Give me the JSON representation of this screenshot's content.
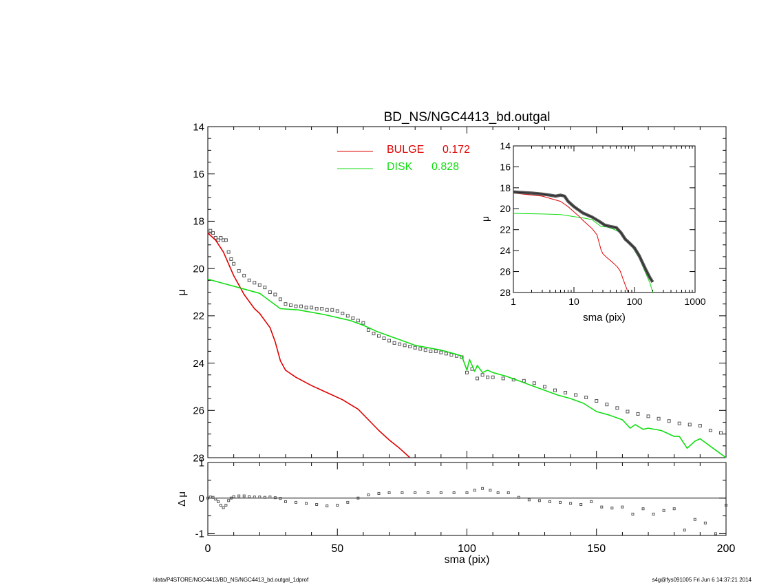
{
  "footer": {
    "left": "/data/P4STORE/NGC4413/BD_NS/NGC4413_bd.outgal_1dprof",
    "right": "s4g@fys091005  Fri Jun  6 14:37:21 2014"
  },
  "colors": {
    "data": "#555555",
    "bulge": "#e00000",
    "disk": "#11dd11",
    "axis": "#000000"
  },
  "chart_data": [
    {
      "id": "main",
      "type": "line",
      "title": "BD_NS/NGC4413_bd.outgal",
      "xlabel": "",
      "ylabel": "μ",
      "xlim": [
        0,
        200
      ],
      "ylim": [
        14,
        28
      ],
      "y_inverted": true,
      "xticks": [
        0,
        50,
        100,
        150,
        200
      ],
      "yticks": [
        14,
        16,
        18,
        20,
        22,
        24,
        26,
        28
      ],
      "legend": {
        "position": "top-center",
        "entries": [
          {
            "label": "BULGE",
            "value": "0.172",
            "color": "#e00000"
          },
          {
            "label": "DISK",
            "value": "0.828",
            "color": "#11dd11"
          }
        ]
      },
      "series": [
        {
          "name": "data",
          "style": "markers",
          "x": [
            1,
            2,
            3,
            4,
            5,
            6,
            7,
            8,
            9,
            10,
            12,
            14,
            16,
            18,
            20,
            22,
            24,
            26,
            28,
            30,
            32,
            34,
            36,
            38,
            40,
            42,
            44,
            46,
            48,
            50,
            52,
            54,
            56,
            58,
            60,
            62,
            64,
            66,
            68,
            70,
            72,
            74,
            76,
            78,
            80,
            82,
            84,
            86,
            88,
            90,
            92,
            94,
            96,
            98,
            100,
            102,
            104,
            106,
            108,
            110,
            114,
            118,
            122,
            126,
            130,
            134,
            138,
            142,
            146,
            150,
            154,
            158,
            162,
            166,
            170,
            174,
            178,
            182,
            186,
            190,
            194,
            198
          ],
          "y": [
            18.4,
            18.5,
            18.7,
            18.8,
            18.7,
            18.8,
            18.8,
            19.3,
            19.6,
            19.8,
            20.1,
            20.3,
            20.5,
            20.6,
            20.7,
            20.8,
            21.0,
            21.1,
            21.3,
            21.5,
            21.55,
            21.6,
            21.6,
            21.65,
            21.65,
            21.7,
            21.7,
            21.75,
            21.75,
            21.8,
            21.9,
            22.0,
            22.1,
            22.2,
            22.3,
            22.6,
            22.75,
            22.85,
            22.95,
            23.05,
            23.15,
            23.2,
            23.25,
            23.3,
            23.35,
            23.4,
            23.45,
            23.5,
            23.5,
            23.55,
            23.6,
            23.65,
            23.7,
            23.75,
            24.4,
            24.25,
            24.65,
            24.5,
            24.6,
            24.6,
            24.65,
            24.7,
            24.75,
            24.85,
            25.0,
            25.15,
            25.25,
            25.35,
            25.45,
            25.6,
            25.75,
            25.9,
            26.05,
            26.15,
            26.25,
            26.35,
            26.45,
            26.55,
            26.6,
            26.65,
            26.85,
            26.95
          ]
        },
        {
          "name": "BULGE",
          "style": "line",
          "x": [
            0,
            3,
            6,
            8,
            10,
            12,
            14,
            16,
            18,
            20,
            22,
            24,
            26,
            28,
            30,
            34,
            40,
            46,
            52,
            58,
            62,
            66,
            70,
            74,
            78
          ],
          "y": [
            18.5,
            18.8,
            19.3,
            19.8,
            20.3,
            20.7,
            21.1,
            21.4,
            21.7,
            21.9,
            22.2,
            22.5,
            23.1,
            23.9,
            24.3,
            24.6,
            24.95,
            25.25,
            25.55,
            25.95,
            26.4,
            26.85,
            27.25,
            27.6,
            28.0
          ]
        },
        {
          "name": "DISK",
          "style": "line",
          "x": [
            0,
            10,
            20,
            28,
            35,
            45,
            55,
            60,
            65,
            70,
            75,
            80,
            85,
            90,
            95,
            98,
            100,
            101,
            103,
            104,
            106,
            108,
            110,
            115,
            120,
            125,
            130,
            135,
            140,
            145,
            150,
            155,
            160,
            163,
            165,
            168,
            170,
            175,
            180,
            182,
            185,
            188,
            190,
            195,
            200
          ],
          "y": [
            20.45,
            20.75,
            21.05,
            21.7,
            21.75,
            21.95,
            22.2,
            22.4,
            22.65,
            22.85,
            23.05,
            23.25,
            23.35,
            23.45,
            23.6,
            23.7,
            24.3,
            23.85,
            24.35,
            24.1,
            24.4,
            24.3,
            24.4,
            24.55,
            24.75,
            24.95,
            25.15,
            25.35,
            25.5,
            25.7,
            26.05,
            26.2,
            26.4,
            26.75,
            26.6,
            26.8,
            26.75,
            26.85,
            27.1,
            27.1,
            27.6,
            27.3,
            27.2,
            27.6,
            28.0
          ]
        }
      ]
    },
    {
      "id": "residual",
      "type": "scatter",
      "xlabel": "sma (pix)",
      "ylabel": "Δ μ",
      "xlim": [
        0,
        200
      ],
      "ylim": [
        -1.05,
        1.0
      ],
      "xticks": [
        0,
        50,
        100,
        150,
        200
      ],
      "yticks": [
        -1,
        0,
        1
      ],
      "zero_line": true,
      "series": [
        {
          "name": "residual",
          "style": "markers",
          "x": [
            0,
            1,
            2,
            3,
            4,
            5,
            6,
            7,
            8,
            9,
            10,
            12,
            14,
            16,
            18,
            20,
            22,
            24,
            26,
            28,
            30,
            34,
            38,
            42,
            46,
            50,
            54,
            58,
            62,
            66,
            70,
            75,
            80,
            85,
            90,
            95,
            100,
            103,
            106,
            109,
            112,
            116,
            120,
            124,
            128,
            132,
            136,
            140,
            144,
            148,
            152,
            156,
            160,
            164,
            168,
            172,
            176,
            180,
            184,
            188,
            192,
            196,
            200
          ],
          "y": [
            0.0,
            0.03,
            0.02,
            -0.03,
            -0.1,
            -0.2,
            -0.27,
            -0.2,
            -0.07,
            0.0,
            0.04,
            0.06,
            0.06,
            0.04,
            0.03,
            0.03,
            0.02,
            0.03,
            0.01,
            -0.01,
            -0.1,
            -0.12,
            -0.15,
            -0.18,
            -0.22,
            -0.2,
            -0.12,
            0.0,
            0.09,
            0.13,
            0.15,
            0.15,
            0.15,
            0.15,
            0.15,
            0.15,
            0.15,
            0.22,
            0.27,
            0.22,
            0.15,
            0.15,
            0.02,
            -0.05,
            -0.07,
            -0.1,
            -0.12,
            -0.15,
            -0.18,
            -0.1,
            -0.25,
            -0.28,
            -0.25,
            -0.45,
            -0.3,
            -0.45,
            -0.35,
            -0.3,
            -0.9,
            -0.6,
            -0.7,
            -1.0,
            -0.2
          ]
        }
      ]
    },
    {
      "id": "inset",
      "type": "line",
      "xlabel": "sma (pix)",
      "ylabel": "μ",
      "x_scale": "log",
      "xlim": [
        1,
        1000
      ],
      "ylim": [
        14,
        28
      ],
      "y_inverted": true,
      "xticks": [
        1,
        10,
        100,
        1000
      ],
      "yticks": [
        14,
        16,
        18,
        20,
        22,
        24,
        26,
        28
      ],
      "series": [
        {
          "name": "data",
          "style": "thick-line",
          "x": [
            1,
            2,
            3,
            4,
            5,
            6,
            7,
            8,
            10,
            14,
            20,
            26,
            32,
            40,
            50,
            60,
            70,
            80,
            100,
            120,
            150,
            180,
            200
          ],
          "y": [
            18.4,
            18.5,
            18.6,
            18.7,
            18.8,
            18.7,
            18.8,
            19.3,
            19.8,
            20.4,
            20.8,
            21.2,
            21.55,
            21.7,
            21.8,
            22.3,
            22.9,
            23.2,
            23.75,
            24.5,
            25.7,
            26.6,
            27.0
          ]
        },
        {
          "name": "BULGE",
          "style": "line",
          "x": [
            1,
            3,
            6,
            8,
            10,
            12,
            14,
            16,
            20,
            24,
            28,
            30,
            34,
            40,
            46,
            52,
            58,
            62,
            66,
            70,
            74,
            78
          ],
          "y": [
            18.5,
            18.8,
            19.3,
            19.8,
            20.3,
            20.7,
            21.1,
            21.4,
            21.9,
            22.5,
            23.9,
            24.3,
            24.6,
            24.95,
            25.25,
            25.55,
            25.95,
            26.4,
            26.85,
            27.25,
            27.6,
            28.0
          ]
        },
        {
          "name": "DISK",
          "style": "line",
          "x": [
            1,
            3,
            6,
            10,
            15,
            20,
            28,
            35,
            45,
            55,
            65,
            75,
            85,
            100,
            120,
            150,
            180,
            200
          ],
          "y": [
            20.45,
            20.5,
            20.55,
            20.75,
            20.9,
            21.05,
            21.7,
            21.75,
            21.95,
            22.2,
            22.65,
            23.05,
            23.35,
            24.0,
            24.75,
            26.05,
            27.1,
            28.0
          ]
        }
      ]
    }
  ]
}
